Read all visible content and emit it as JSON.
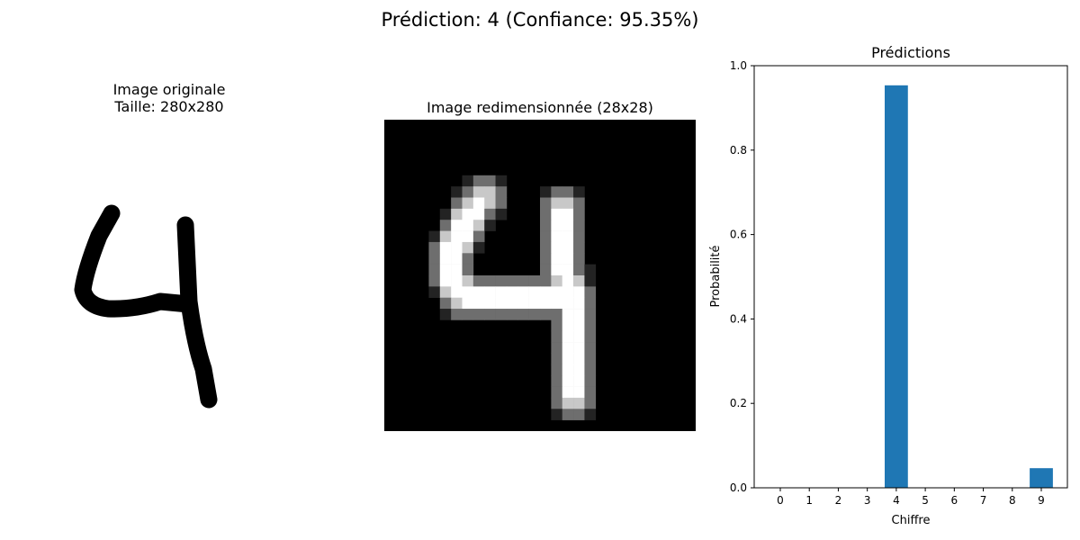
{
  "suptitle": "Prédiction: 4 (Confiance: 95.35%)",
  "panels": {
    "original": {
      "title_line1": "Image originale",
      "title_line2": "Taille: 280x280"
    },
    "resized": {
      "title": "Image redimensionnée (28x28)"
    }
  },
  "chart_data": {
    "type": "bar",
    "title": "Prédictions",
    "xlabel": "Chiffre",
    "ylabel": "Probabilité",
    "categories": [
      "0",
      "1",
      "2",
      "3",
      "4",
      "5",
      "6",
      "7",
      "8",
      "9"
    ],
    "values": [
      0.0,
      0.0,
      0.0,
      0.0,
      0.9535,
      0.0,
      0.0,
      0.0,
      0.0,
      0.0465
    ],
    "ylim": [
      0,
      1.0
    ],
    "yticks": [
      "0.0",
      "0.2",
      "0.4",
      "0.6",
      "0.8",
      "1.0"
    ],
    "yticks_values": [
      0,
      0.2,
      0.4,
      0.6,
      0.8,
      1.0
    ],
    "bar_color": "#1f77b4",
    "grid": false
  }
}
